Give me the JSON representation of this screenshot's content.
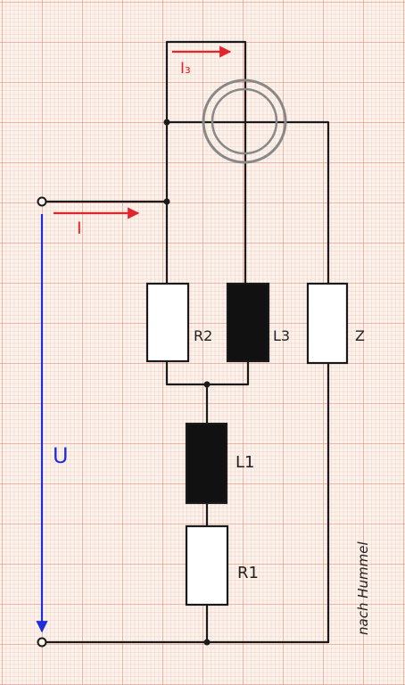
{
  "labels": {
    "current_total": "I",
    "current_3": "I₃",
    "voltage": "U",
    "r2": "R2",
    "l3": "L3",
    "z": "Z",
    "l1": "L1",
    "r1": "R1",
    "credit": "nach Hummel"
  },
  "colors": {
    "wire": "#1a1a1a",
    "current_arrow": "#e0262b",
    "voltage_arrow": "#1f2fd8",
    "inductor_fill": "#111111",
    "resistor_fill": "#ffffff",
    "meter_ring": "#888888"
  }
}
